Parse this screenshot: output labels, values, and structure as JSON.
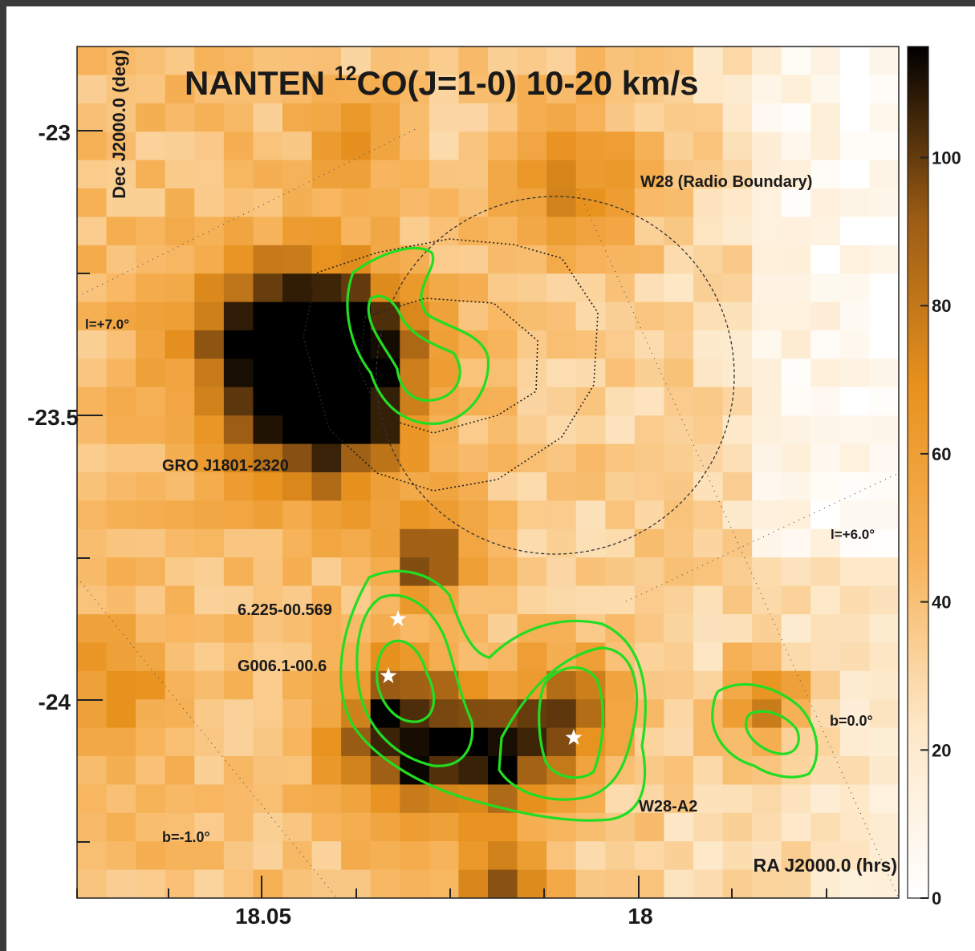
{
  "chart_data": {
    "type": "heatmap",
    "title_prefix": "NANTEN ",
    "title_sup": "12",
    "title_suffix": "CO(J=1-0)  10-20 km/s",
    "xlabel": "RA J2000.0 (hrs)",
    "ylabel": "Dec J2000.0 (deg)",
    "x_ticks": [
      "18.05",
      "18"
    ],
    "y_ticks": [
      "-23",
      "-23.5",
      "-24"
    ],
    "colorbar_ticks": [
      "0",
      "20",
      "40",
      "60",
      "80",
      "100"
    ],
    "colorbar_range": [
      0,
      115
    ],
    "colormap": [
      "#ffffff",
      "#fde8c8",
      "#f7b35a",
      "#e8921e",
      "#9a5b14",
      "#000000"
    ],
    "contour_color": "#22dd22",
    "annotations": {
      "w28": "W28 (Radio Boundary)",
      "l7": "l=+7.0°",
      "l6": "l=+6.0°",
      "gro": "GRO J1801-2320",
      "src1": "6.225-00.569",
      "src2": "G006.1-00.6",
      "b0": "b=0.0°",
      "bm1": "b=-1.0°",
      "w28a2": "W28-A2"
    }
  }
}
